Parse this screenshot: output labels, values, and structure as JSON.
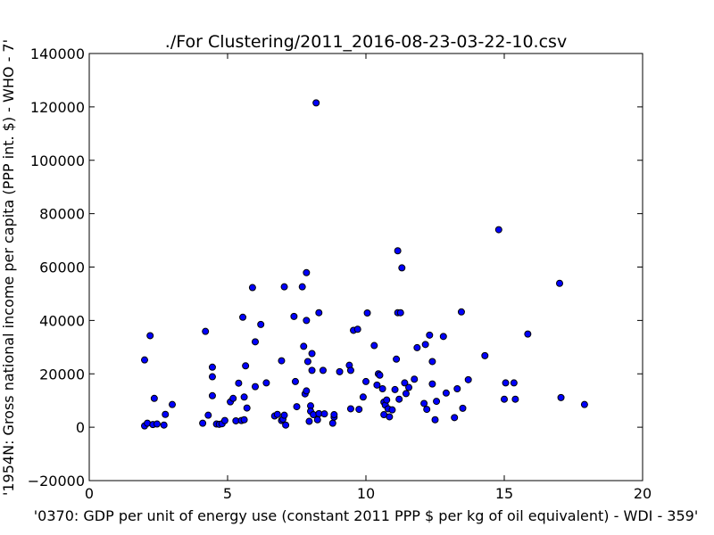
{
  "chart_data": {
    "type": "scatter",
    "title": "./For Clustering/2011_2016-08-23-03-22-10.csv",
    "xlabel": "'0370: GDP per unit of energy use  (constant 2011 PPP $ per kg of oil equivalent) - WDI - 359'",
    "ylabel": "'1954N: Gross national income per capita (PPP int. $) - WHO - 7'",
    "xlim": [
      0,
      20
    ],
    "ylim": [
      -20000,
      140000
    ],
    "xticks": [
      "0",
      "5",
      "10",
      "15",
      "20"
    ],
    "yticks": [
      "−20000",
      "0",
      "20000",
      "40000",
      "60000",
      "80000",
      "100000",
      "120000",
      "140000"
    ],
    "marker_color": "#0000ff",
    "grid": false,
    "series": [
      {
        "points": [
          [
            2.0,
            500
          ],
          [
            2.0,
            25200
          ],
          [
            2.1,
            1500
          ],
          [
            2.2,
            34300
          ],
          [
            2.3,
            1000
          ],
          [
            2.35,
            10800
          ],
          [
            2.45,
            1200
          ],
          [
            2.7,
            800
          ],
          [
            2.75,
            4800
          ],
          [
            3.0,
            8500
          ],
          [
            4.1,
            1500
          ],
          [
            4.2,
            35900
          ],
          [
            4.3,
            4500
          ],
          [
            4.45,
            22500
          ],
          [
            4.45,
            18900
          ],
          [
            4.45,
            11800
          ],
          [
            4.6,
            1200
          ],
          [
            4.7,
            1100
          ],
          [
            4.8,
            1300
          ],
          [
            4.9,
            2500
          ],
          [
            5.1,
            9500
          ],
          [
            5.2,
            10800
          ],
          [
            5.3,
            2400
          ],
          [
            5.4,
            16500
          ],
          [
            5.5,
            2500
          ],
          [
            5.55,
            41200
          ],
          [
            5.6,
            2800
          ],
          [
            5.6,
            11300
          ],
          [
            5.65,
            23000
          ],
          [
            5.7,
            7200
          ],
          [
            5.9,
            52300
          ],
          [
            6.0,
            32000
          ],
          [
            6.0,
            15200
          ],
          [
            6.2,
            38500
          ],
          [
            6.4,
            16600
          ],
          [
            6.7,
            4200
          ],
          [
            6.8,
            4800
          ],
          [
            6.95,
            2500
          ],
          [
            6.95,
            24900
          ],
          [
            7.0,
            3000
          ],
          [
            7.05,
            52600
          ],
          [
            7.05,
            4500
          ],
          [
            7.1,
            800
          ],
          [
            7.4,
            41500
          ],
          [
            7.45,
            17100
          ],
          [
            7.5,
            7700
          ],
          [
            7.7,
            52600
          ],
          [
            7.75,
            30300
          ],
          [
            7.8,
            12500
          ],
          [
            7.85,
            57900
          ],
          [
            7.85,
            40000
          ],
          [
            7.85,
            13600
          ],
          [
            7.9,
            24600
          ],
          [
            7.95,
            2200
          ],
          [
            8.0,
            8000
          ],
          [
            8.0,
            6000
          ],
          [
            8.05,
            21300
          ],
          [
            8.05,
            27600
          ],
          [
            8.1,
            4700
          ],
          [
            8.2,
            121500
          ],
          [
            8.25,
            2800
          ],
          [
            8.3,
            42900
          ],
          [
            8.3,
            5100
          ],
          [
            8.45,
            21300
          ],
          [
            8.5,
            5000
          ],
          [
            8.8,
            1500
          ],
          [
            8.85,
            3800
          ],
          [
            8.85,
            4700
          ],
          [
            9.05,
            20800
          ],
          [
            9.4,
            23200
          ],
          [
            9.45,
            21300
          ],
          [
            9.45,
            6900
          ],
          [
            9.55,
            36300
          ],
          [
            9.7,
            36700
          ],
          [
            9.75,
            6700
          ],
          [
            9.9,
            11300
          ],
          [
            10.0,
            17100
          ],
          [
            10.05,
            42800
          ],
          [
            10.3,
            30600
          ],
          [
            10.4,
            15800
          ],
          [
            10.45,
            20000
          ],
          [
            10.5,
            19500
          ],
          [
            10.6,
            14400
          ],
          [
            10.65,
            4700
          ],
          [
            10.65,
            9400
          ],
          [
            10.7,
            8300
          ],
          [
            10.75,
            10200
          ],
          [
            10.8,
            6900
          ],
          [
            10.85,
            3900
          ],
          [
            10.95,
            6500
          ],
          [
            11.05,
            14100
          ],
          [
            11.1,
            25500
          ],
          [
            11.15,
            66100
          ],
          [
            11.15,
            42900
          ],
          [
            11.2,
            10500
          ],
          [
            11.25,
            42900
          ],
          [
            11.3,
            59700
          ],
          [
            11.4,
            16600
          ],
          [
            11.45,
            12600
          ],
          [
            11.55,
            14900
          ],
          [
            11.75,
            18000
          ],
          [
            11.85,
            29800
          ],
          [
            12.1,
            8900
          ],
          [
            12.15,
            31000
          ],
          [
            12.2,
            6700
          ],
          [
            12.3,
            34500
          ],
          [
            12.4,
            24600
          ],
          [
            12.4,
            16200
          ],
          [
            12.5,
            2800
          ],
          [
            12.55,
            9700
          ],
          [
            12.8,
            34000
          ],
          [
            12.9,
            12800
          ],
          [
            13.2,
            3600
          ],
          [
            13.3,
            14400
          ],
          [
            13.45,
            43200
          ],
          [
            13.5,
            7100
          ],
          [
            13.7,
            17800
          ],
          [
            14.3,
            26800
          ],
          [
            14.8,
            74000
          ],
          [
            15.0,
            10500
          ],
          [
            15.05,
            16600
          ],
          [
            15.35,
            16600
          ],
          [
            15.4,
            10500
          ],
          [
            15.85,
            34900
          ],
          [
            17.0,
            53900
          ],
          [
            17.05,
            11100
          ],
          [
            17.9,
            8500
          ]
        ]
      }
    ]
  }
}
